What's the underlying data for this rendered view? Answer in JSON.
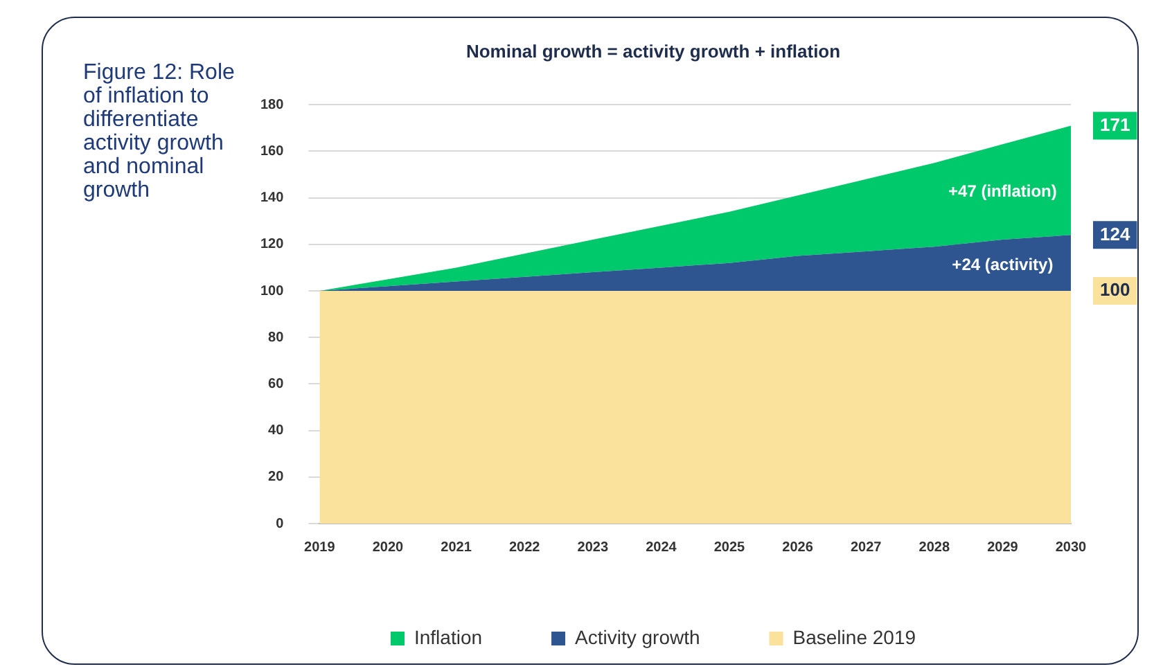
{
  "chart_data": {
    "type": "area",
    "title": "Nominal growth = activity growth + inflation",
    "stacked": true,
    "categories": [
      "2019",
      "2020",
      "2021",
      "2022",
      "2023",
      "2024",
      "2025",
      "2026",
      "2027",
      "2028",
      "2029",
      "2030"
    ],
    "series": [
      {
        "name": "Baseline 2019",
        "color": "#fbe29c",
        "values": [
          100,
          100,
          100,
          100,
          100,
          100,
          100,
          100,
          100,
          100,
          100,
          100
        ]
      },
      {
        "name": "Activity growth",
        "color": "#2e5590",
        "values": [
          0,
          2,
          4,
          6,
          8,
          10,
          12,
          15,
          17,
          19,
          22,
          24
        ]
      },
      {
        "name": "Inflation",
        "color": "#00c96b",
        "values": [
          0,
          3,
          6,
          10,
          14,
          18,
          22,
          26,
          31,
          36,
          41,
          47
        ]
      }
    ],
    "ylim": [
      0,
      180
    ],
    "yticks": [
      0,
      20,
      40,
      60,
      80,
      100,
      120,
      140,
      160,
      180
    ],
    "grid": "y",
    "legend": "bottom",
    "annotations": [
      "Figure 12: Role of inflation to differentiate activity growth and nominal growth",
      "+47 (inflation)",
      "+24 (activity)",
      {
        "text": "171",
        "x": "2030",
        "y": 171
      },
      {
        "text": "124",
        "x": "2030",
        "y": 124
      },
      {
        "text": "100",
        "x": "2030",
        "y": 100
      }
    ]
  }
}
